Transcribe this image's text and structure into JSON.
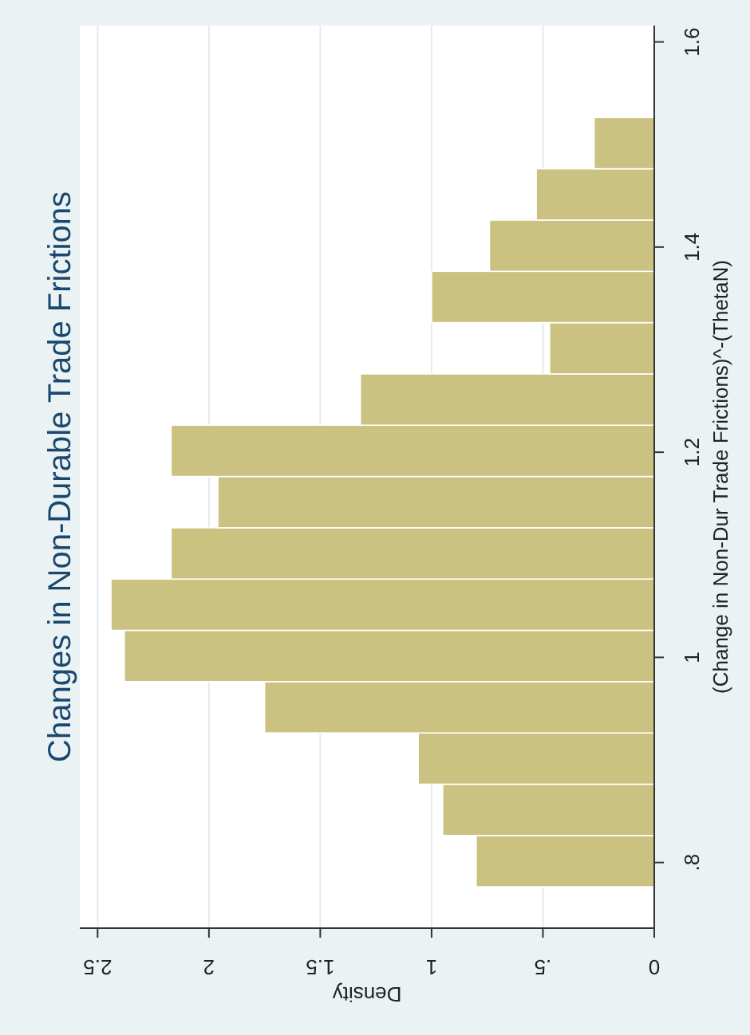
{
  "chart_data": {
    "type": "histogram",
    "orientation": "horizontal",
    "title": "Changes in Non-Durable Trade Frictions",
    "xlabel": "Density",
    "ylabel": "(Change in Non-Dur Trade Frictions)^-(ThetaN)",
    "bins": [
      0.777,
      0.827,
      0.877,
      0.927,
      0.977,
      1.027,
      1.077,
      1.127,
      1.177,
      1.227,
      1.277,
      1.327,
      1.377,
      1.427,
      1.477,
      1.527
    ],
    "values": [
      0.8,
      0.95,
      1.06,
      1.75,
      2.38,
      2.44,
      2.17,
      1.96,
      2.17,
      1.32,
      0.47,
      1.0,
      0.74,
      0.53,
      0.27
    ],
    "color": "#cbc281",
    "xlim": [
      2.58,
      0
    ],
    "xticks": [
      2.5,
      2,
      1.5,
      1,
      {
        "value": 0.5,
        "label": ".5"
      },
      0
    ],
    "ylim": [
      0.736,
      1.616
    ],
    "yticks": [
      {
        "value": 0.8,
        "label": ".8"
      },
      1,
      1.2,
      1.4,
      1.6
    ],
    "grid": "x"
  }
}
